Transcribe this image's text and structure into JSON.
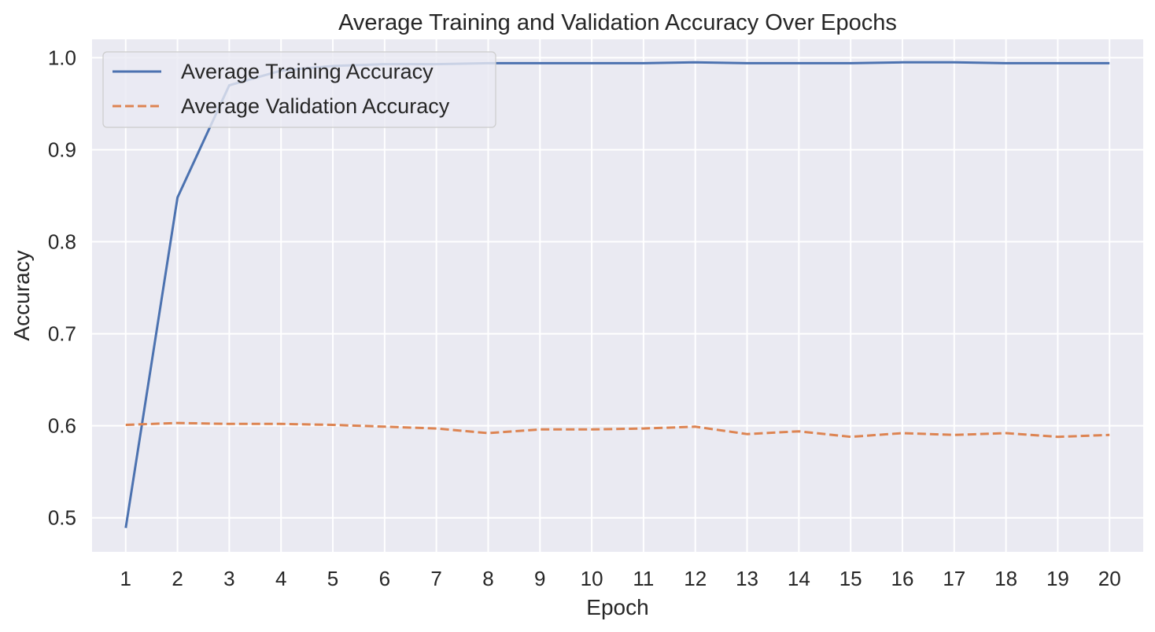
{
  "chart_data": {
    "type": "line",
    "title": "Average Training and Validation Accuracy Over Epochs",
    "xlabel": "Epoch",
    "ylabel": "Accuracy",
    "x": [
      1,
      2,
      3,
      4,
      5,
      6,
      7,
      8,
      9,
      10,
      11,
      12,
      13,
      14,
      15,
      16,
      17,
      18,
      19,
      20
    ],
    "xticks": [
      "1",
      "2",
      "3",
      "4",
      "5",
      "6",
      "7",
      "8",
      "9",
      "10",
      "11",
      "12",
      "13",
      "14",
      "15",
      "16",
      "17",
      "18",
      "19",
      "20"
    ],
    "yticks": [
      "0.5",
      "0.6",
      "0.7",
      "0.8",
      "0.9",
      "1.0"
    ],
    "ytick_values": [
      0.5,
      0.6,
      0.7,
      0.8,
      0.9,
      1.0
    ],
    "xlim": [
      0.35,
      20.65
    ],
    "ylim": [
      0.463,
      1.02
    ],
    "grid": true,
    "legend_position": "upper-left",
    "series": [
      {
        "name": "Average Training Accuracy",
        "color": "#4c72b0",
        "linestyle": "solid",
        "values": [
          0.489,
          0.848,
          0.97,
          0.986,
          0.991,
          0.993,
          0.993,
          0.994,
          0.994,
          0.994,
          0.994,
          0.995,
          0.994,
          0.994,
          0.994,
          0.995,
          0.995,
          0.994,
          0.994,
          0.994
        ]
      },
      {
        "name": "Average Validation Accuracy",
        "color": "#dd8452",
        "linestyle": "dashed",
        "values": [
          0.601,
          0.603,
          0.602,
          0.602,
          0.601,
          0.599,
          0.597,
          0.592,
          0.596,
          0.596,
          0.597,
          0.599,
          0.591,
          0.594,
          0.588,
          0.592,
          0.59,
          0.592,
          0.588,
          0.59
        ]
      }
    ]
  }
}
